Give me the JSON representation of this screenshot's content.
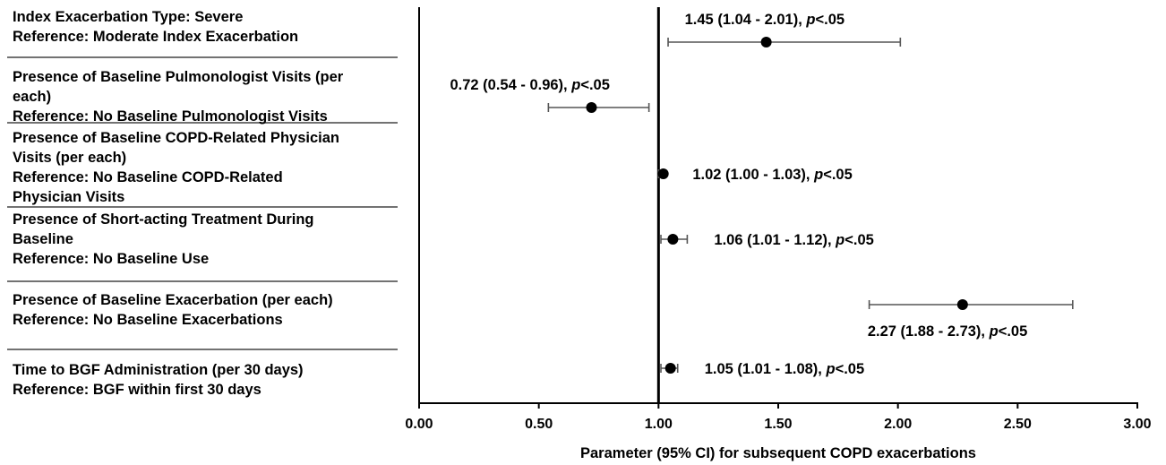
{
  "chart_data": {
    "type": "forest",
    "xlabel": "Parameter (95% CI) for subsequent COPD exacerbations",
    "xlim": [
      0,
      3
    ],
    "reference_line": 1.0,
    "x_ticks": [
      "0.00",
      "0.50",
      "1.00",
      "1.50",
      "2.00",
      "2.50",
      "3.00"
    ],
    "x_tick_values": [
      0,
      0.5,
      1.0,
      1.5,
      2.0,
      2.5,
      3.0
    ],
    "rows": [
      {
        "label_lines": [
          "Index Exacerbation Type: Severe",
          "Reference: Moderate Index Exacerbation"
        ],
        "estimate": 1.45,
        "ci_low": 1.04,
        "ci_high": 2.01,
        "estimate_text": "1.45 (1.04 - 2.01),",
        "p_letter": "p",
        "p_rest": "<.05",
        "annotation_position": "above"
      },
      {
        "label_lines": [
          "Presence of Baseline Pulmonologist Visits (per",
          "each)",
          "Reference: No Baseline Pulmonologist Visits"
        ],
        "estimate": 0.72,
        "ci_low": 0.54,
        "ci_high": 0.96,
        "estimate_text": "0.72 (0.54 - 0.96),",
        "p_letter": "p",
        "p_rest": "<.05",
        "annotation_position": "above"
      },
      {
        "label_lines": [
          "Presence of Baseline COPD-Related Physician",
          "Visits (per each)",
          "Reference: No Baseline COPD-Related",
          "Physician Visits"
        ],
        "estimate": 1.02,
        "ci_low": 1.0,
        "ci_high": 1.03,
        "estimate_text": "1.02 (1.00 - 1.03),",
        "p_letter": "p",
        "p_rest": "<.05",
        "annotation_position": "right"
      },
      {
        "label_lines": [
          "Presence of Short-acting Treatment During",
          "Baseline",
          "Reference: No Baseline Use"
        ],
        "estimate": 1.06,
        "ci_low": 1.01,
        "ci_high": 1.12,
        "estimate_text": "1.06 (1.01 - 1.12),",
        "p_letter": "p",
        "p_rest": "<.05",
        "annotation_position": "right"
      },
      {
        "label_lines": [
          "Presence of Baseline Exacerbation (per each)",
          "Reference: No Baseline Exacerbations"
        ],
        "estimate": 2.27,
        "ci_low": 1.88,
        "ci_high": 2.73,
        "estimate_text": "2.27 (1.88 - 2.73),",
        "p_letter": "p",
        "p_rest": "<.05",
        "annotation_position": "below"
      },
      {
        "label_lines": [
          "Time to BGF Administration (per 30 days)",
          "Reference: BGF within first 30 days"
        ],
        "estimate": 1.05,
        "ci_low": 1.01,
        "ci_high": 1.08,
        "estimate_text": "1.05 (1.01 - 1.08),",
        "p_letter": "p",
        "p_rest": "<.05",
        "annotation_position": "right"
      }
    ],
    "colors": {
      "marker": "#000000",
      "whisker": "#555555",
      "axis": "#000000",
      "divider": "#444444"
    }
  }
}
